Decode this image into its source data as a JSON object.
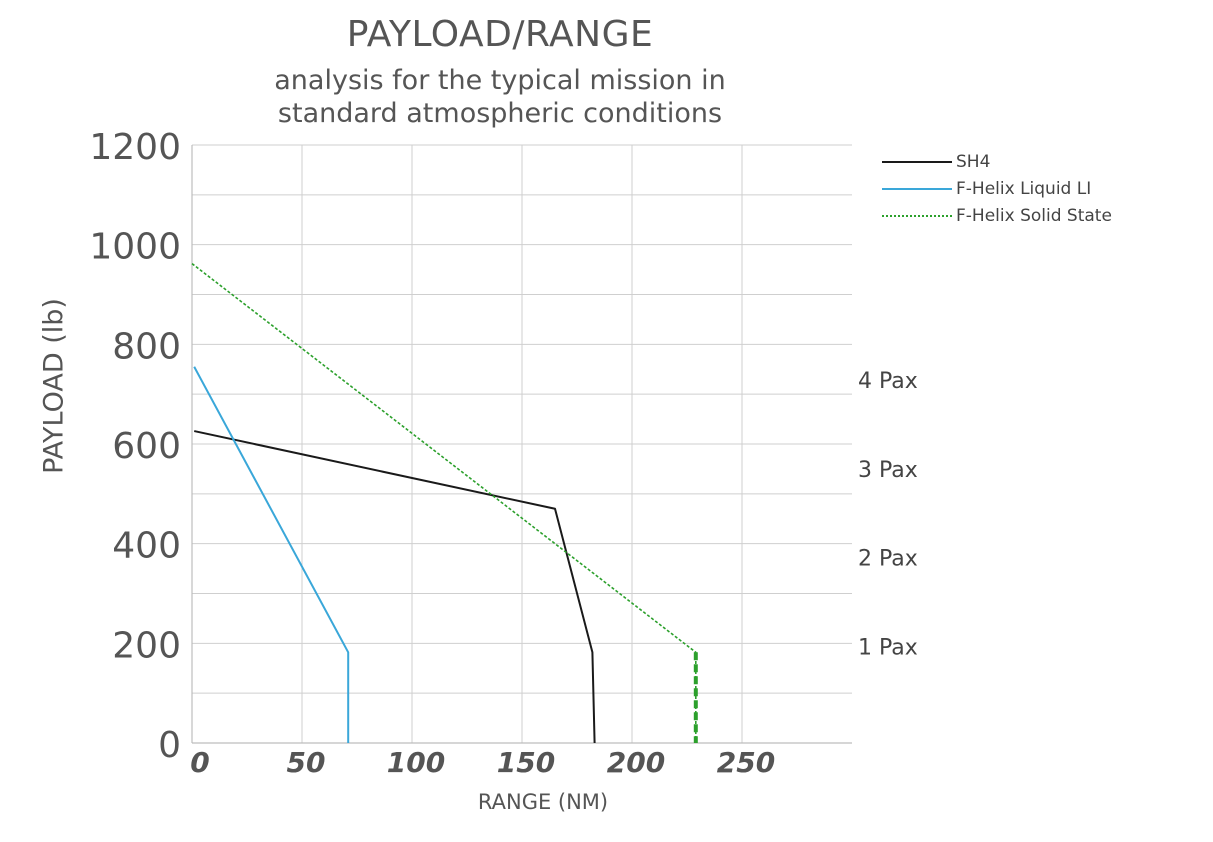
{
  "chart_data": {
    "type": "line",
    "title": "PAYLOAD/RANGE",
    "subtitle": [
      "analysis for the typical mission in",
      "standard atmospheric conditions"
    ],
    "xlabel": "RANGE (NM)",
    "ylabel": "PAYLOAD (lb)",
    "xlim": [
      0,
      300
    ],
    "ylim": [
      0,
      1200
    ],
    "x_ticks": [
      0,
      50,
      100,
      150,
      200,
      250
    ],
    "y_ticks": [
      0,
      200,
      400,
      600,
      800,
      1000,
      1200
    ],
    "grid": true,
    "legend_position": "top-right",
    "series": [
      {
        "name": "SH4",
        "color": "#1a1a1a",
        "style": "solid",
        "points": [
          [
            1,
            626
          ],
          [
            165,
            470
          ],
          [
            182,
            182
          ],
          [
            183,
            0
          ]
        ]
      },
      {
        "name": "F-Helix Liquid LI",
        "color": "#3aa7d9",
        "style": "solid",
        "points": [
          [
            1,
            755
          ],
          [
            71,
            182
          ],
          [
            71,
            0
          ]
        ]
      },
      {
        "name": "F-Helix Solid State",
        "color": "#2ca02c",
        "style": "dotted",
        "points": [
          [
            0,
            962
          ],
          [
            229,
            182
          ],
          [
            229,
            0
          ]
        ]
      }
    ],
    "annotations": [
      {
        "text": "4 Pax",
        "y": 728
      },
      {
        "text": "3 Pax",
        "y": 550
      },
      {
        "text": "2 Pax",
        "y": 372
      },
      {
        "text": "1 Pax",
        "y": 194
      }
    ]
  }
}
